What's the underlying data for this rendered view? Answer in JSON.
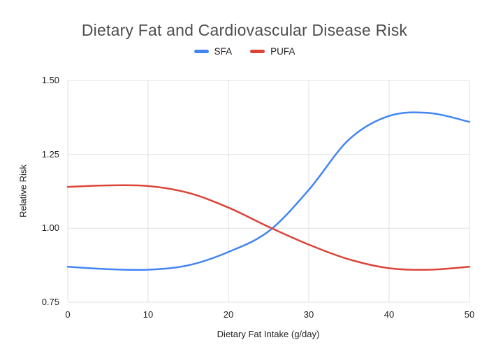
{
  "chart_data": {
    "type": "line",
    "title": "Dietary Fat and Cardiovascular Disease Risk",
    "xlabel": "Dietary Fat Intake (g/day)",
    "ylabel": "Relative Risk",
    "x": [
      0,
      5,
      10,
      15,
      20,
      25,
      30,
      35,
      40,
      45,
      50
    ],
    "series": [
      {
        "name": "SFA",
        "color": "#4285f4",
        "values": [
          0.87,
          0.862,
          0.86,
          0.875,
          0.92,
          0.99,
          1.13,
          1.3,
          1.38,
          1.39,
          1.36
        ]
      },
      {
        "name": "PUFA",
        "color": "#db4437",
        "values": [
          1.14,
          1.145,
          1.143,
          1.12,
          1.07,
          1.005,
          0.945,
          0.895,
          0.865,
          0.86,
          0.87
        ]
      }
    ],
    "xlim": [
      0,
      50
    ],
    "ylim": [
      0.75,
      1.5
    ],
    "xticks": [
      0,
      10,
      20,
      30,
      40,
      50
    ],
    "xtick_labels": [
      "0",
      "10",
      "20",
      "30",
      "40",
      "50"
    ],
    "yticks": [
      0.75,
      1.0,
      1.25,
      1.5
    ],
    "ytick_labels": [
      "0.75",
      "1.00",
      "1.25",
      "1.50"
    ],
    "grid": true,
    "legend_position": "top"
  },
  "colors": {
    "grid": "#e0e0e0",
    "title_text": "#4d4d4d",
    "tick_text": "#202124"
  }
}
